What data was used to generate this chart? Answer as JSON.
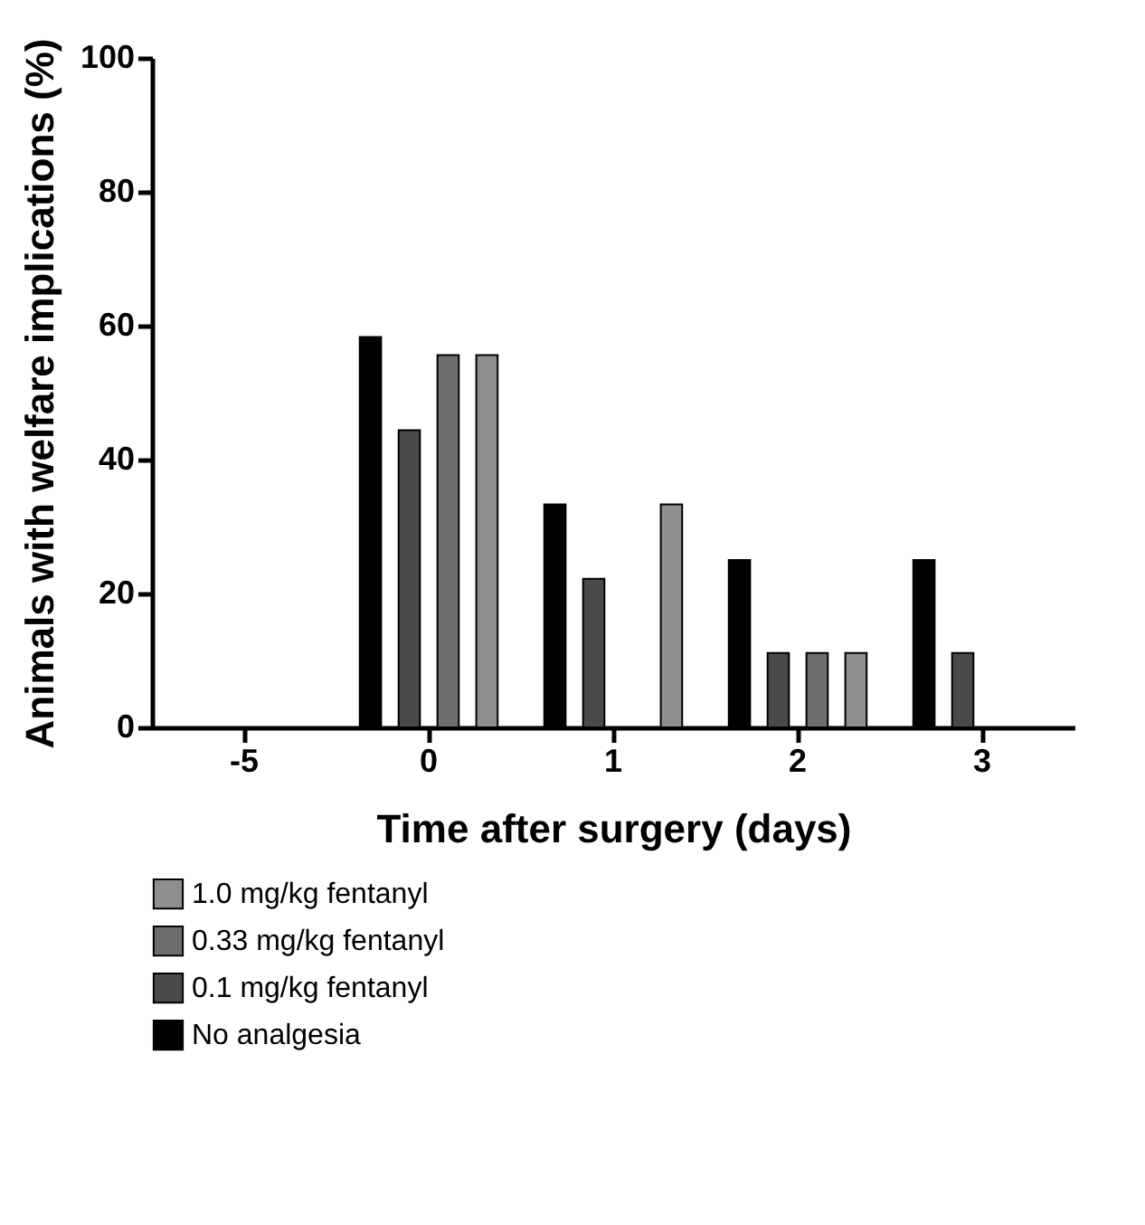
{
  "chart_data": {
    "type": "bar",
    "xlabel": "Time after surgery (days)",
    "ylabel": "Animals with welfare implications (%)",
    "categories": [
      "-5",
      "0",
      "1",
      "2",
      "3"
    ],
    "series": [
      {
        "name": "No analgesia",
        "color": "#000000",
        "values": [
          null,
          58.3,
          33.3,
          25,
          25
        ]
      },
      {
        "name": "0.1 mg/kg fentanyl",
        "color": "#4a4a4a",
        "values": [
          null,
          44.4,
          22.2,
          11.1,
          11.1
        ]
      },
      {
        "name": "0.33 mg/kg fentanyl",
        "color": "#6e6e6e",
        "values": [
          null,
          55.6,
          0,
          11.1,
          0
        ]
      },
      {
        "name": "1.0 mg/kg fentanyl",
        "color": "#8f8f8f",
        "values": [
          null,
          55.6,
          33.3,
          11.1,
          0
        ]
      }
    ],
    "ylim": [
      0,
      100
    ],
    "yticks": [
      0,
      20,
      40,
      60,
      80,
      100
    ],
    "grid": false,
    "legend": "bottom"
  }
}
